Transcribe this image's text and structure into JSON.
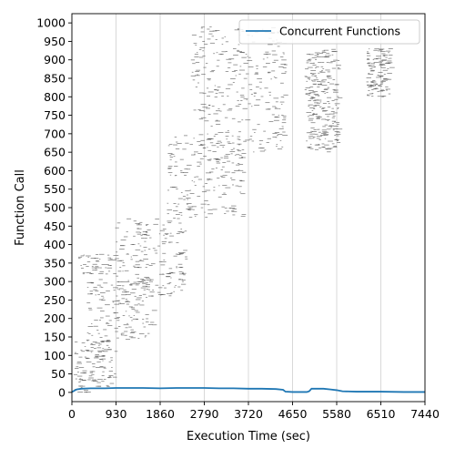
{
  "chart_data": {
    "type": "line",
    "xlabel": "Execution Time (sec)",
    "ylabel": "Function Call",
    "xlim": [
      0,
      7440
    ],
    "ylim": [
      -25,
      1025
    ],
    "x_ticks": [
      0,
      930,
      1860,
      2790,
      3720,
      4650,
      5580,
      6510,
      7440
    ],
    "y_ticks": [
      0,
      50,
      100,
      150,
      200,
      250,
      300,
      350,
      400,
      450,
      500,
      550,
      600,
      650,
      700,
      750,
      800,
      850,
      900,
      950,
      1000
    ],
    "grid": "vertical",
    "legend_position": "top-right",
    "colors": {
      "series": "#1f77b4",
      "segments": "#444444",
      "grid": "#cfcfcf"
    },
    "series": [
      {
        "name": "Concurrent Functions",
        "x": [
          0,
          100,
          200,
          400,
          700,
          930,
          1200,
          1500,
          1860,
          2200,
          2500,
          2790,
          3100,
          3400,
          3720,
          4000,
          4300,
          4450,
          4500,
          4650,
          4950,
          5000,
          5050,
          5300,
          5450,
          5580,
          5700,
          6000,
          6510,
          7000,
          7440
        ],
        "y": [
          1,
          8,
          10,
          11,
          11,
          12,
          12,
          12,
          11,
          12,
          12,
          12,
          11,
          11,
          10,
          10,
          9,
          7,
          2,
          1,
          1,
          3,
          10,
          10,
          8,
          6,
          3,
          2,
          2,
          1,
          1
        ]
      }
    ],
    "segments_description": "Function-call execution intervals plotted as short horizontal dashes (start to end time at each call index)",
    "segment_bands": [
      {
        "t_min": 30,
        "t_max": 900,
        "id_min": 0,
        "id_max": 140
      },
      {
        "t_min": 120,
        "t_max": 900,
        "id_min": 320,
        "id_max": 375
      },
      {
        "t_min": 300,
        "t_max": 1700,
        "id_min": 140,
        "id_max": 310
      },
      {
        "t_min": 900,
        "t_max": 2400,
        "id_min": 260,
        "id_max": 470
      },
      {
        "t_min": 2000,
        "t_max": 3600,
        "id_min": 470,
        "id_max": 700
      },
      {
        "t_min": 2500,
        "t_max": 4500,
        "id_min": 650,
        "id_max": 990
      },
      {
        "t_min": 4900,
        "t_max": 5600,
        "id_min": 650,
        "id_max": 930
      },
      {
        "t_min": 6200,
        "t_max": 6700,
        "id_min": 800,
        "id_max": 930
      }
    ]
  }
}
